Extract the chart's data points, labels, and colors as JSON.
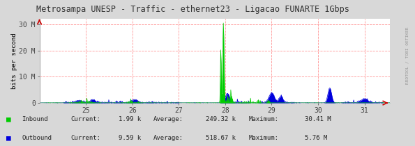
{
  "title": "Metrosampa UNESP - Traffic - ethernet23 - Ligacao FUNARTE 1Gbps",
  "ylabel": "bits per second",
  "xlim": [
    24.0,
    31.55
  ],
  "ylim": [
    0,
    32000000
  ],
  "yticks": [
    0,
    10000000,
    20000000,
    30000000
  ],
  "ytick_labels": [
    "0",
    "10 M",
    "20 M",
    "30 M"
  ],
  "xticks": [
    25,
    26,
    27,
    28,
    29,
    30,
    31
  ],
  "xtick_labels": [
    "25",
    "26",
    "27",
    "28",
    "29",
    "30",
    "31"
  ],
  "fig_bg_color": "#d8d8d8",
  "plot_bg_color": "#ffffff",
  "grid_color": "#ff8888",
  "inbound_color": "#00cc00",
  "outbound_color": "#0000dd",
  "title_color": "#333333",
  "border_color": "#aaaaaa",
  "legend": {
    "inbound_label": "Inbound",
    "outbound_label": "Outbound",
    "inbound_current": "1.99 k",
    "inbound_average": "249.32 k",
    "inbound_maximum": "30.41 M",
    "outbound_current": "9.59 k",
    "outbound_average": "518.67 k",
    "outbound_maximum": "5.76 M"
  },
  "watermark": "RRDTOOL / TOBI OETIKER",
  "arrow_color": "#cc0000"
}
